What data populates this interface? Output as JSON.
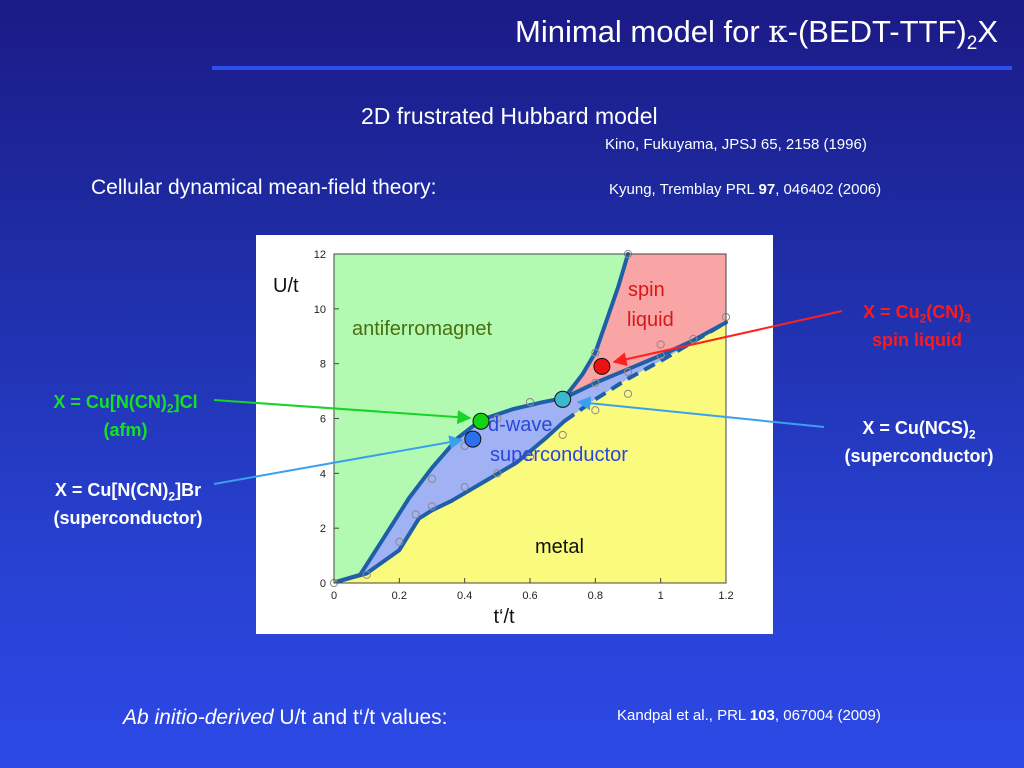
{
  "slide": {
    "title_prefix": "Minimal model for ",
    "title_kappa": "κ",
    "title_mid": "-(BEDT-TTF)",
    "title_sub": "2",
    "title_suffix": "X",
    "subtitle": "2D frustrated Hubbard model",
    "ref_kino": "Kino, Fukuyama, JPSJ 65, 2158 (1996)",
    "cdmft": "Cellular dynamical mean-field theory:",
    "ref_kyung": {
      "pre": "Kyung, Tremblay  PRL ",
      "bold": "97",
      "post": ", 046402 (2006)"
    },
    "bottom_italic": "Ab initio-derived",
    "bottom_rest": " U/t and t‘/t values:",
    "ref_kandpal": {
      "pre": "Kandpal et al., PRL ",
      "bold": "103",
      "post": ", 067004 (2009)"
    }
  },
  "callouts": {
    "cucl": {
      "l1_pre": "X = Cu[N(CN)",
      "l1_sub": "2",
      "l1_post": "]Cl",
      "l2": "(afm)",
      "color": "#16e026"
    },
    "cubr": {
      "l1_pre": "X = Cu[N(CN)",
      "l1_sub": "2",
      "l1_post": "]Br",
      "l2": "(superconductor)",
      "color": "#ffffff"
    },
    "cucn3": {
      "l1_pre": "X = Cu",
      "l1_sub": "2",
      "l1_mid": "(CN)",
      "l1_sub2": "3",
      "l2": "spin liquid",
      "color": "#ff1a1a"
    },
    "cuncs": {
      "l1_pre": "X = Cu(NCS)",
      "l1_sub": "2",
      "l2": "(superconductor)",
      "color": "#ffffff"
    }
  },
  "chart_data": {
    "type": "phase_diagram",
    "xlabel": "t‘/t",
    "ylabel": "U/t",
    "xlim": [
      0,
      1.2
    ],
    "ylim": [
      0,
      12
    ],
    "xticks": [
      0,
      0.2,
      0.4,
      0.6,
      0.8,
      1,
      1.2
    ],
    "xtick_labels": [
      "0",
      "0.2",
      "0.4",
      "0.6",
      "0.8",
      "1",
      "1.2"
    ],
    "yticks": [
      0,
      2,
      4,
      6,
      8,
      10,
      12
    ],
    "ytick_labels": [
      "0",
      "2",
      "4",
      "6",
      "8",
      "10",
      "12"
    ],
    "regions": [
      {
        "label": "antiferromagnet",
        "color": "#b2fab2",
        "text_color": "#4a6e10"
      },
      {
        "label_l1": "spin",
        "label_l2": "liquid",
        "color": "#f9a5a5",
        "text_color": "#d81818"
      },
      {
        "label_l1": "d-wave",
        "label_l2": "superconductor",
        "color": "#a0b1f4",
        "text_color": "#2a48d8"
      },
      {
        "label": "metal",
        "color": "#fafa7c",
        "text_color": "#111111"
      }
    ],
    "boundaries": {
      "afm_sl": [
        [
          0.705,
          6.75
        ],
        [
          0.76,
          7.6
        ],
        [
          0.8,
          8.4
        ],
        [
          0.835,
          9.6
        ],
        [
          0.87,
          10.8
        ],
        [
          0.9,
          12
        ]
      ],
      "upper_sc": [
        [
          0.01,
          0.05
        ],
        [
          0.08,
          0.3
        ],
        [
          0.15,
          1.6
        ],
        [
          0.23,
          3.1
        ],
        [
          0.3,
          4.2
        ],
        [
          0.38,
          5.3
        ],
        [
          0.45,
          5.95
        ],
        [
          0.55,
          6.35
        ],
        [
          0.64,
          6.6
        ],
        [
          0.705,
          6.75
        ],
        [
          0.8,
          7.3
        ],
        [
          0.9,
          7.8
        ],
        [
          1.0,
          8.3
        ],
        [
          1.1,
          8.85
        ],
        [
          1.2,
          9.5
        ]
      ],
      "lower_sc": [
        [
          0.01,
          0.05
        ],
        [
          0.1,
          0.35
        ],
        [
          0.2,
          1.2
        ],
        [
          0.26,
          2.35
        ],
        [
          0.3,
          2.65
        ],
        [
          0.36,
          3.0
        ],
        [
          0.46,
          3.7
        ],
        [
          0.56,
          4.4
        ],
        [
          0.65,
          5.3
        ],
        [
          0.705,
          5.9
        ]
      ],
      "lower_sc_dashed": [
        [
          0.705,
          5.9
        ],
        [
          0.8,
          6.7
        ],
        [
          0.9,
          7.45
        ],
        [
          1.0,
          8.1
        ],
        [
          1.1,
          8.8
        ],
        [
          1.2,
          9.5
        ]
      ]
    },
    "computed_points": [
      [
        0,
        0
      ],
      [
        0.1,
        0.3
      ],
      [
        0.2,
        1.5
      ],
      [
        0.25,
        2.5
      ],
      [
        0.3,
        2.8
      ],
      [
        0.3,
        3.8
      ],
      [
        0.4,
        3.5
      ],
      [
        0.4,
        5.0
      ],
      [
        0.5,
        4.0
      ],
      [
        0.5,
        6.0
      ],
      [
        0.6,
        4.6
      ],
      [
        0.6,
        6.6
      ],
      [
        0.7,
        5.4
      ],
      [
        0.8,
        6.3
      ],
      [
        0.8,
        7.3
      ],
      [
        0.8,
        8.4
      ],
      [
        0.9,
        6.9
      ],
      [
        0.9,
        7.7
      ],
      [
        0.9,
        12
      ],
      [
        1.0,
        8.3
      ],
      [
        1.0,
        8.7
      ],
      [
        1.1,
        8.9
      ],
      [
        1.2,
        9.7
      ]
    ],
    "materials": [
      {
        "key": "cucl",
        "x": 0.45,
        "y": 5.9,
        "color": "#11d311"
      },
      {
        "key": "cubr",
        "x": 0.425,
        "y": 5.25,
        "color": "#2d70ee"
      },
      {
        "key": "cuncs",
        "x": 0.7,
        "y": 6.7,
        "color": "#3ab8cf"
      },
      {
        "key": "cucn3",
        "x": 0.82,
        "y": 7.9,
        "color": "#ee1111"
      }
    ]
  }
}
